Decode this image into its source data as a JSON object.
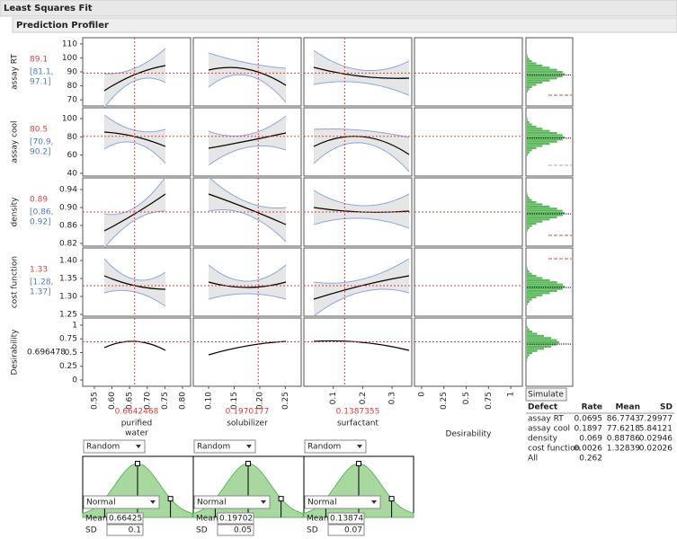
{
  "header": {
    "title": "Least Squares Fit",
    "section": "Prediction Profiler"
  },
  "responses": [
    {
      "name": "assay RT",
      "value": 89.1,
      "interval": [
        "[81.1,",
        "97.1]"
      ],
      "ylim": [
        65.6,
        114.4
      ],
      "yticks": [
        70,
        80,
        90,
        100,
        110
      ]
    },
    {
      "name": "assay cool",
      "value": 80.5,
      "interval": [
        "[70.9,",
        "90.2]"
      ],
      "ylim": [
        37,
        111.8
      ],
      "yticks": [
        40,
        60,
        80,
        100
      ]
    },
    {
      "name": "density",
      "value": 0.89,
      "interval": [
        "[0.86,",
        "0.92]"
      ],
      "ylim": [
        0.814,
        0.966
      ],
      "yticks": [
        0.82,
        0.86,
        {
          "value": 0.9,
          "label": "0.90"
        },
        0.94
      ]
    },
    {
      "name": "cost function",
      "value": 1.33,
      "interval": [
        "[1.28,",
        "1.37]"
      ],
      "ylim": [
        1.245,
        1.435
      ],
      "yticks": [
        1.25,
        {
          "value": 1.3,
          "label": "1.30"
        },
        1.35,
        {
          "value": 1.4,
          "label": "1.40"
        }
      ]
    },
    {
      "name": "Desirability",
      "value": 0.696478,
      "ylim": [
        -0.115,
        1.13
      ],
      "yticks": [
        0,
        0.25,
        0.5,
        0.75,
        1
      ]
    }
  ],
  "factors": [
    {
      "name": [
        "purified",
        "water"
      ],
      "value": 0.6642468,
      "xlim": [
        0.517,
        0.823
      ],
      "xticks": [
        0.55,
        {
          "value": 0.6,
          "label": "0.60"
        },
        0.65,
        {
          "value": 0.7,
          "label": "0.70"
        },
        0.75,
        {
          "value": 0.8,
          "label": "0.80"
        }
      ],
      "random": "Random",
      "distribution": "Normal",
      "mean": 0.66425,
      "sd": 0.1
    },
    {
      "name": [
        "solubilizer"
      ],
      "value": 0.1970177,
      "xlim": [
        0.07,
        0.281
      ],
      "xticks": [
        {
          "value": 0.1,
          "label": "0.10"
        },
        0.15,
        {
          "value": 0.2,
          "label": "0.20"
        },
        0.25
      ],
      "random": "Random",
      "distribution": "Normal",
      "mean": 0.19702,
      "sd": 0.05
    },
    {
      "name": [
        "surfactant"
      ],
      "value": 0.1387355,
      "xlim": [
        0,
        0.367
      ],
      "xticks": [
        0.1,
        0.2,
        0.3
      ],
      "random": "Random",
      "distribution": "Normal",
      "mean": 0.13874,
      "sd": 0.07
    }
  ],
  "desirability_axis": {
    "name": "Desirability",
    "xlim": [
      -0.08,
      1.13
    ],
    "xticks": [
      0,
      0.25,
      0.5,
      0.75,
      1
    ]
  },
  "input_labels": {
    "mean": "Mean",
    "sd": "SD"
  },
  "simulate": "Simulate",
  "defect_table": {
    "columns": [
      "Defect",
      "Rate",
      "Mean",
      "SD"
    ],
    "rows": [
      [
        "assay RT",
        0.0695,
        86.7743,
        7.29977
      ],
      [
        "assay cool",
        0.1897,
        77.6218,
        5.84121
      ],
      [
        "density",
        0.069,
        0.88786,
        0.02946
      ],
      [
        "cost function",
        0.0026,
        1.32839,
        0.02026
      ],
      [
        "All",
        0.262
      ]
    ]
  }
}
